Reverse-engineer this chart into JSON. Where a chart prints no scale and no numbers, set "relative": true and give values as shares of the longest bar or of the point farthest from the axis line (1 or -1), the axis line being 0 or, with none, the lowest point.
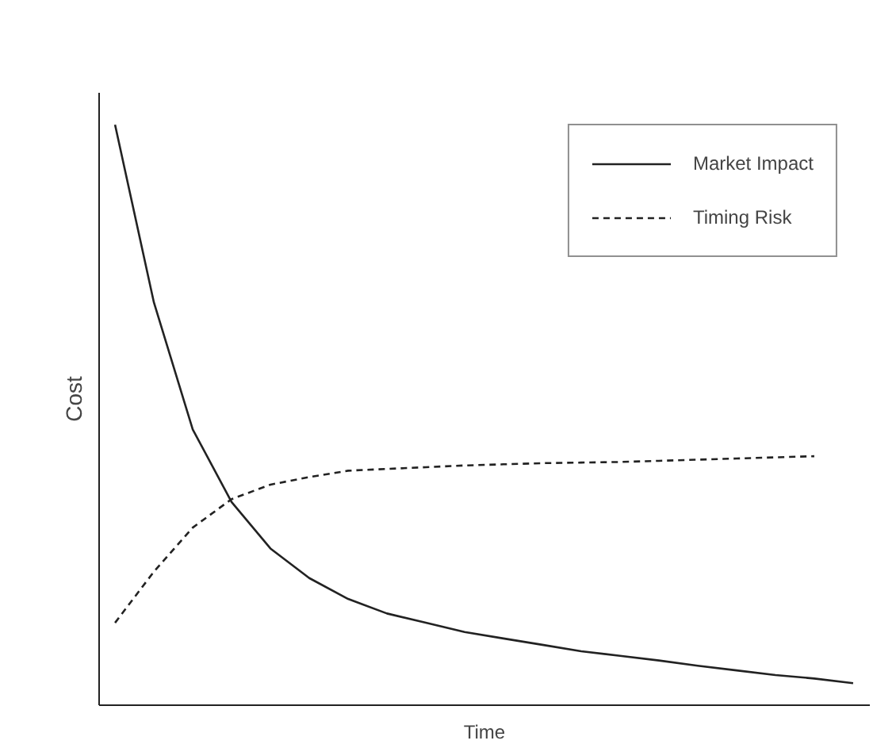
{
  "chart_data": {
    "type": "line",
    "relative": true,
    "xlabel": "Time",
    "ylabel": "Cost",
    "legend": "top right",
    "grid": false,
    "marker": "none",
    "categories": [
      null,
      null,
      null,
      null,
      null,
      null,
      null,
      null,
      null,
      null,
      null,
      null,
      null,
      null,
      null,
      null,
      null,
      null,
      null,
      null
    ],
    "series": [
      {
        "name": "Market Impact",
        "color": "#222222",
        "line_style": "solid",
        "values": [
          1.0,
          0.694,
          0.475,
          0.35,
          0.27,
          0.219,
          0.183,
          0.158,
          0.142,
          0.126,
          0.115,
          0.104,
          0.093,
          0.085,
          0.077,
          0.068,
          0.06,
          0.052,
          0.046,
          0.038
        ]
      },
      {
        "name": "Timing Risk",
        "color": "#222222",
        "line_style": "dashed",
        "values": [
          0.142,
          0.23,
          0.306,
          0.355,
          0.38,
          0.393,
          0.404,
          0.407,
          0.41,
          0.413,
          0.415,
          0.417,
          0.418,
          0.419,
          0.421,
          0.423,
          0.425,
          0.427,
          0.429,
          null
        ]
      }
    ]
  }
}
